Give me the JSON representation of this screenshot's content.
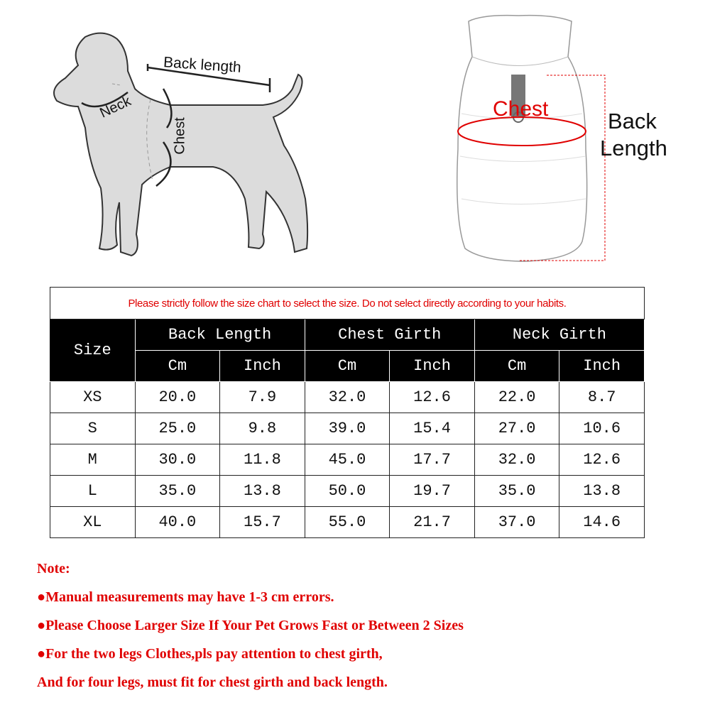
{
  "diagram": {
    "dog_labels": {
      "back_length": "Back length",
      "neck": "Neck",
      "chest": "Chest"
    },
    "vest_labels": {
      "chest": "Chest",
      "back_length": "Back\nLength",
      "back_line1": "Back",
      "back_line2": "Length"
    }
  },
  "size_table": {
    "note": "Please strictly follow the size chart to select the size. Do not select directly according to your habits.",
    "size_header": "Size",
    "groups": [
      "Back Length",
      "Chest Girth",
      "Neck Girth"
    ],
    "units": [
      "Cm",
      "Inch",
      "Cm",
      "Inch",
      "Cm",
      "Inch"
    ],
    "rows": [
      {
        "size": "XS",
        "values": [
          "20.0",
          "7.9",
          "32.0",
          "12.6",
          "22.0",
          "8.7"
        ]
      },
      {
        "size": "S",
        "values": [
          "25.0",
          "9.8",
          "39.0",
          "15.4",
          "27.0",
          "10.6"
        ]
      },
      {
        "size": "M",
        "values": [
          "30.0",
          "11.8",
          "45.0",
          "17.7",
          "32.0",
          "12.6"
        ]
      },
      {
        "size": "L",
        "values": [
          "35.0",
          "13.8",
          "50.0",
          "19.7",
          "35.0",
          "13.8"
        ]
      },
      {
        "size": "XL",
        "values": [
          "40.0",
          "15.7",
          "55.0",
          "21.7",
          "37.0",
          "14.6"
        ]
      }
    ]
  },
  "notes": {
    "title": "Note:",
    "lines": [
      "●Manual measurements may have 1-3 cm errors.",
      "●Please Choose Larger Size If Your Pet Grows Fast or Between 2 Sizes",
      "●For the two legs Clothes,pls pay attention to chest girth,",
      "And for four legs, must fit for chest girth and back length."
    ]
  },
  "colors": {
    "accent_red": "#e00000",
    "header_bg": "#000000",
    "dog_fill": "#dcdcdc"
  }
}
